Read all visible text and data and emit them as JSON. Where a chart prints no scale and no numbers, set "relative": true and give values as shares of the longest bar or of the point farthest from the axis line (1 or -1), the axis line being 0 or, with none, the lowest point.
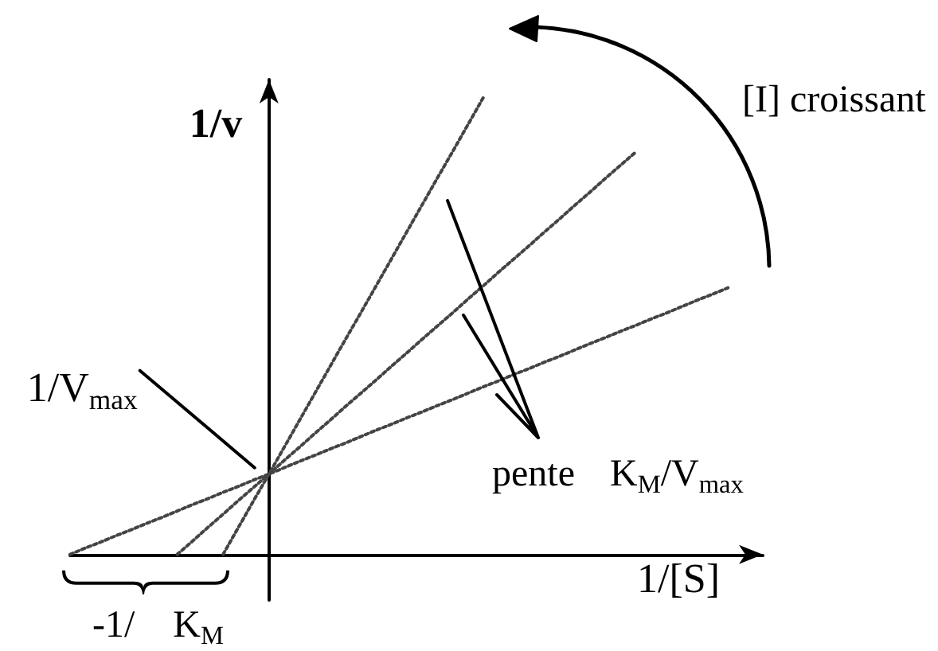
{
  "chart_data": {
    "type": "line",
    "relative": true,
    "xlabel": "1/[S]",
    "ylabel": "1/v",
    "marker": "none",
    "line_style": "dotted",
    "categories": [
      null,
      null,
      null,
      null,
      null,
      null,
      null,
      null,
      null,
      null,
      null,
      null,
      null,
      null,
      null,
      null,
      null,
      null,
      null,
      null,
      null,
      null,
      null,
      null,
      null,
      null,
      null,
      null,
      null,
      null,
      null,
      null,
      null,
      null,
      null,
      null,
      null,
      null,
      null,
      null,
      null,
      null,
      null,
      null
    ],
    "annotations": [
      "1/V$_{max}$",
      "pente K$_{M}$/V$_{max}$",
      "[I] croissant",
      "-1/ K$_{M}$"
    ],
    "series": [
      {
        "color": "#444444",
        "values": [
          0,
          0.014,
          0.027,
          0.041,
          0.054,
          0.068,
          0.081,
          0.095,
          0.109,
          0.122,
          0.136,
          0.149,
          0.163,
          0.176,
          0.19,
          0.204,
          0.217,
          0.231,
          0.244,
          0.258,
          0.272,
          0.285,
          0.299,
          0.312,
          0.326,
          0.339,
          0.353,
          0.367,
          0.38,
          0.394,
          0.407,
          0.421,
          0.434,
          0.448,
          0.462,
          0.475,
          0.489,
          0.502,
          0.516,
          0.529,
          0.543,
          0.557,
          0.57,
          0.584
        ]
      },
      {
        "color": "#444444",
        "values": [
          null,
          null,
          null,
          null,
          null,
          null,
          null,
          0,
          0.029,
          0.059,
          0.088,
          0.118,
          0.147,
          0.176,
          0.206,
          0.235,
          0.265,
          0.294,
          0.324,
          0.353,
          0.382,
          0.412,
          0.441,
          0.471,
          0.5,
          0.529,
          0.559,
          0.588,
          0.618,
          0.647,
          0.676,
          0.706,
          0.735,
          0.765,
          0.794,
          0.824,
          0.853,
          0.882,
          null,
          null,
          null,
          null,
          null,
          null
        ]
      },
      {
        "color": "#444444",
        "values": [
          null,
          null,
          null,
          null,
          null,
          null,
          null,
          null,
          null,
          null,
          0,
          0.059,
          0.118,
          0.176,
          0.235,
          0.294,
          0.353,
          0.412,
          0.471,
          0.529,
          0.588,
          0.647,
          0.706,
          0.765,
          0.824,
          0.882,
          0.941,
          1,
          null,
          null,
          null,
          null,
          null,
          null,
          null,
          null,
          null,
          null,
          null,
          null,
          null,
          null,
          null,
          null
        ]
      }
    ]
  }
}
